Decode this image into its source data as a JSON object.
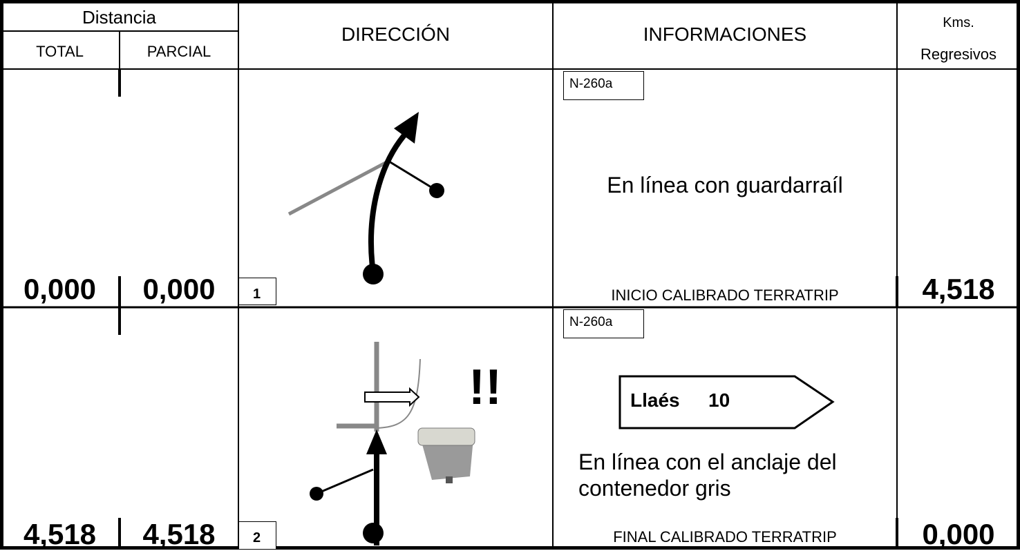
{
  "header": {
    "distance": "Distancia",
    "total": "TOTAL",
    "partial": "PARCIAL",
    "direction": "DIRECCIÓN",
    "info": "INFORMACIONES",
    "kms": "Kms.",
    "kms_sub": "Regresivos"
  },
  "rows": [
    {
      "total": "0,000",
      "partial": "0,000",
      "number": "1",
      "road": "N-260a",
      "note": "En línea con guardarraíl",
      "caption": "INICIO CALIBRADO TERRATRIP",
      "remaining": "4,518"
    },
    {
      "total": "4,518",
      "partial": "4,518",
      "number": "2",
      "road": "N-260a",
      "warning": "!!",
      "sign": {
        "place": "Llaés",
        "distance": "10"
      },
      "note": "En línea con el anclaje del contenedor gris",
      "caption": "FINAL CALIBRADO TERRATRIP",
      "remaining": "0,000"
    }
  ]
}
